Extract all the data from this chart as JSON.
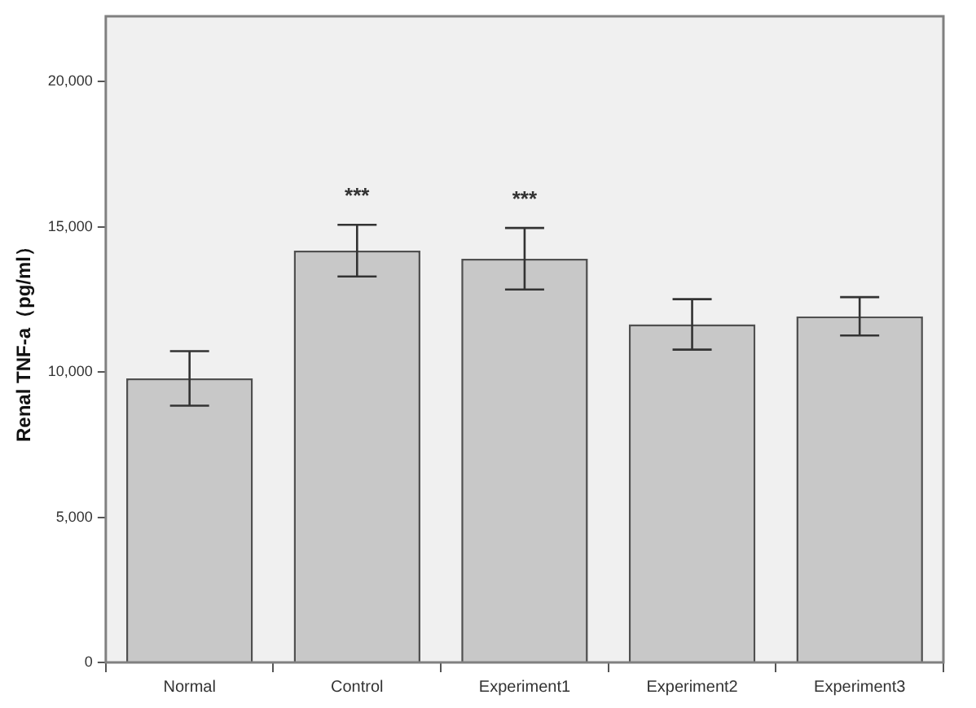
{
  "chart_data": {
    "type": "bar",
    "ylabel": "Renal TNF-a（pg/ml）",
    "categories": [
      "Normal",
      "Control",
      "Experiment1",
      "Experiment2",
      "Experiment3"
    ],
    "values": [
      9780,
      14180,
      13900,
      11640,
      11920
    ],
    "errors": [
      940,
      890,
      1060,
      870,
      660
    ],
    "color": "#c8c8c8",
    "ylim": [
      0,
      22250
    ],
    "yticks": [
      0,
      {
        "value": 5000,
        "label": "5,000"
      },
      {
        "value": 10000,
        "label": "10,000"
      },
      {
        "value": 15000,
        "label": "15,000"
      },
      {
        "value": 20000,
        "label": "20,000"
      }
    ],
    "annotations": [
      {
        "text": "***",
        "x": "Control",
        "y": 15070
      },
      {
        "text": "***",
        "x": "Experiment1",
        "y": 14960
      }
    ],
    "grid": false,
    "legend": false
  }
}
